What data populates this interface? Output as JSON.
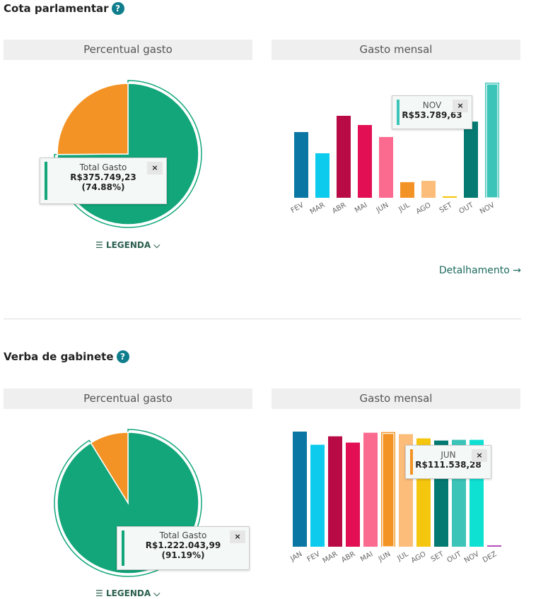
{
  "sections": [
    {
      "title": "Cota parlamentar",
      "pie_title": "Percentual gasto",
      "bar_title": "Gasto mensal",
      "pie": {
        "percent": 74.88,
        "colors": [
          "#12a67a",
          "#f39325"
        ],
        "tooltip": {
          "label": "Total Gasto",
          "value": "R$375.749,23",
          "percent": "(74.88%)",
          "close": "×"
        }
      },
      "legend": "LEGENDA",
      "detail_link": "Detalhamento →",
      "bar_tooltip": {
        "label": "NOV",
        "value": "R$53.789,63",
        "close": "×"
      }
    },
    {
      "title": "Verba de gabinete",
      "pie_title": "Percentual gasto",
      "bar_title": "Gasto mensal",
      "pie": {
        "percent": 91.19,
        "colors": [
          "#12a67a",
          "#f39325"
        ],
        "tooltip": {
          "label": "Total Gasto",
          "value": "R$1.222.043,99",
          "percent": "(91.19%)",
          "close": "×"
        }
      },
      "legend": "LEGENDA",
      "bar_tooltip": {
        "label": "JUN",
        "value": "R$111.538,28",
        "close": "×"
      }
    }
  ],
  "chart_data": [
    {
      "type": "pie",
      "title": "Percentual gasto",
      "slices": [
        {
          "name": "Total Gasto",
          "value": 74.88
        },
        {
          "value": 25.12
        }
      ]
    },
    {
      "type": "bar",
      "title": "Gasto mensal",
      "categories": [
        "FEV",
        "MAR",
        "ABR",
        "MAI",
        "JUN",
        "JUL",
        "AGO",
        "SET",
        "OUT",
        "NOV"
      ],
      "values": [
        30700,
        20800,
        38300,
        34000,
        28400,
        7300,
        7900,
        700,
        35600,
        53789.63
      ],
      "colors": [
        "#0a76a4",
        "#0ccbec",
        "#b80b45",
        "#e20f54",
        "#fb6b8f",
        "#f39325",
        "#fbbd79",
        "#f5c60e",
        "#047a72",
        "#3cc4b8"
      ],
      "highlight": "NOV"
    },
    {
      "type": "pie",
      "title": "Percentual gasto",
      "slices": [
        {
          "name": "Total Gasto",
          "value": 91.19
        },
        {
          "value": 8.81
        }
      ]
    },
    {
      "type": "bar",
      "title": "Gasto mensal",
      "categories": [
        "JAN",
        "FEV",
        "MAR",
        "ABR",
        "MAI",
        "JUN",
        "JUL",
        "AGO",
        "SET",
        "OUT",
        "NOV",
        "DEZ"
      ],
      "values": [
        112000,
        99200,
        107400,
        101300,
        110900,
        111538.28,
        109500,
        105400,
        103300,
        104000,
        104000,
        1400
      ],
      "colors": [
        "#0a76a4",
        "#0ccbec",
        "#b80b45",
        "#e20f54",
        "#fb6b8f",
        "#f39325",
        "#fbbd79",
        "#f5c60e",
        "#047a72",
        "#3cc4b8",
        "#0ee0d2",
        "#b84fb8"
      ],
      "highlight": "JUN"
    }
  ]
}
